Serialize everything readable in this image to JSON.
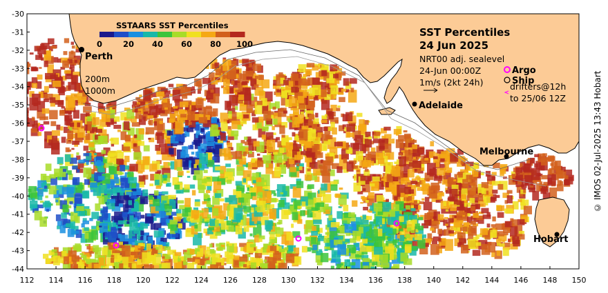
{
  "map": {
    "title_line1": "SST Percentiles",
    "title_line2": "24 Jun 2025",
    "info_lines": [
      "NRT00 adj. sealevel",
      "24-Jun 00:00Z",
      "1m/s (2kt 24h)"
    ],
    "colorbar": {
      "title": "SSTAARS SST Percentiles",
      "ticks": [
        "0",
        "20",
        "40",
        "60",
        "80",
        "100"
      ],
      "colors": [
        "#1a1a8c",
        "#1f4fc8",
        "#1a8fe0",
        "#19b8a8",
        "#3cc43c",
        "#a8dc28",
        "#f0e020",
        "#f5a814",
        "#d2601c",
        "#b4281e"
      ]
    },
    "legend": {
      "argo": "Argo",
      "ship": "Ship",
      "drifters": "drifters@12h",
      "drifters_to": "to 25/06 12Z"
    },
    "depth_labels": [
      "200m",
      "1000m"
    ],
    "cities": [
      "Perth",
      "Adelaide",
      "Melbourne",
      "Hobart"
    ],
    "x_ticks": [
      "112",
      "114",
      "116",
      "118",
      "120",
      "122",
      "124",
      "126",
      "128",
      "130",
      "132",
      "134",
      "136",
      "138",
      "140",
      "142",
      "144",
      "146",
      "148",
      "150"
    ],
    "y_ticks": [
      "-30",
      "-31",
      "-32",
      "-33",
      "-34",
      "-35",
      "-36",
      "-37",
      "-38",
      "-39",
      "-40",
      "-41",
      "-42",
      "-43",
      "-44"
    ],
    "lon_range": [
      112,
      150
    ],
    "lat_range": [
      -44,
      -30
    ],
    "credit": "© IMOS 02-Jul-2025 13:43 Hobart",
    "colors": {
      "land": "#fccb96",
      "ocean_bg": "#ffffff",
      "argo": "#ff00ff"
    }
  }
}
